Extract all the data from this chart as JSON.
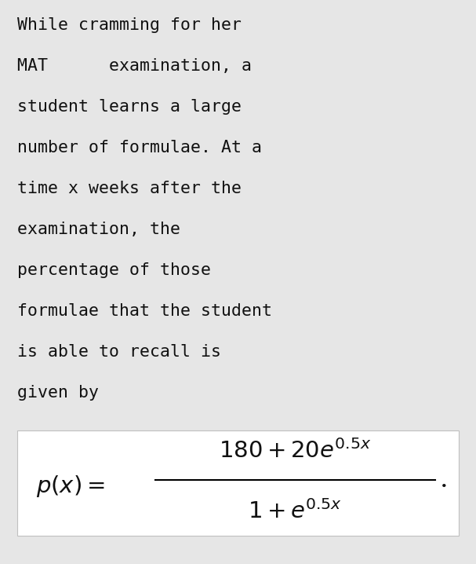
{
  "background_color": "#e6e6e6",
  "formula_box_color": "#ffffff",
  "text_color": "#111111",
  "formula_color": "#111111",
  "text_lines": [
    "While cramming for her",
    "MAT      examination, a",
    "student learns a large",
    "number of formulae. At a",
    "time x weeks after the",
    "examination, the",
    "percentage of those",
    "formulae that the student",
    "is able to recall is",
    "given by"
  ],
  "text_fontsize": 15.5,
  "text_font": "monospace",
  "fig_width": 6.07,
  "fig_height": 7.18,
  "fig_dpi": 100
}
